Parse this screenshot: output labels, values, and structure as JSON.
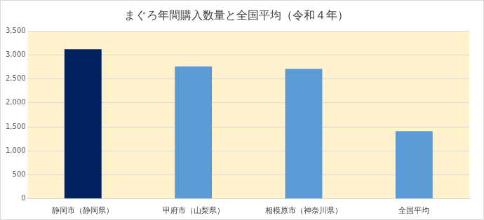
{
  "chart_data": {
    "type": "bar",
    "title": "まぐろ年間購入数量と全国平均（令和４年）",
    "categories": [
      "静岡市（静岡県）",
      "甲府市（山梨県）",
      "相模原市（神奈川県）",
      "全国平均"
    ],
    "values": [
      3120,
      2760,
      2710,
      1410
    ],
    "colors": [
      "#002060",
      "#5b9bd5",
      "#5b9bd5",
      "#5b9bd5"
    ],
    "ylim": [
      0,
      3500
    ],
    "yticks": [
      0,
      500,
      {
        "value": 1000,
        "label": "1,000"
      },
      {
        "value": 1500,
        "label": "1,500"
      },
      {
        "value": 2000,
        "label": "2,000"
      },
      {
        "value": 2500,
        "label": "2,500"
      },
      {
        "value": 3000,
        "label": "3,000"
      },
      {
        "value": 3500,
        "label": "3,500"
      }
    ],
    "grid": true
  }
}
